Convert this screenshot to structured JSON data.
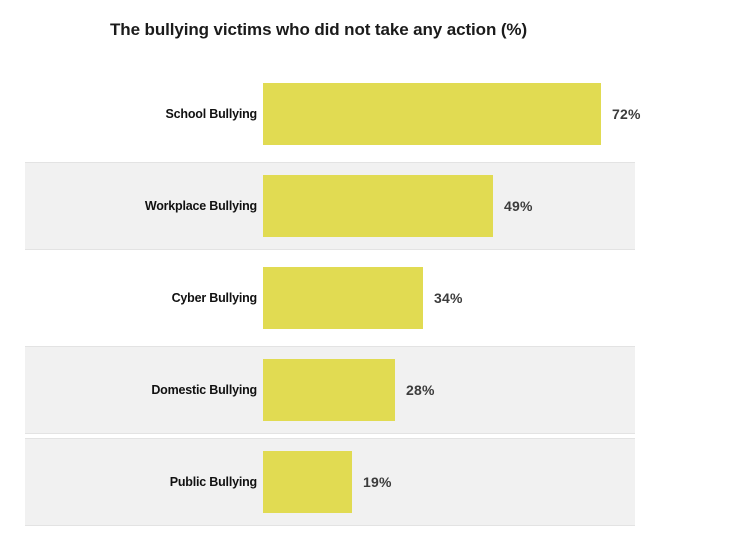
{
  "chart_data": {
    "type": "bar",
    "orientation": "horizontal",
    "title": "The bullying victims who did not take any action (%)",
    "categories": [
      "School Bullying",
      "Workplace Bullying",
      "Cyber Bullying",
      "Domestic Bullying",
      "Public Bullying"
    ],
    "values": [
      72,
      49,
      34,
      28,
      19
    ],
    "value_labels": [
      "72%",
      "49%",
      "34%",
      "28%",
      "19%"
    ],
    "xlim": [
      0,
      100
    ],
    "xlabel": "",
    "ylabel": "",
    "legend": false,
    "grid": false,
    "colors": {
      "bar": "#E1DB52",
      "row_shade": "#F1F1F1",
      "row_border": "#E3E3E3",
      "title_text": "#1B1B1B",
      "category_text": "#111111",
      "value_text": "#3C3C3C",
      "background": "#FFFFFF"
    }
  }
}
